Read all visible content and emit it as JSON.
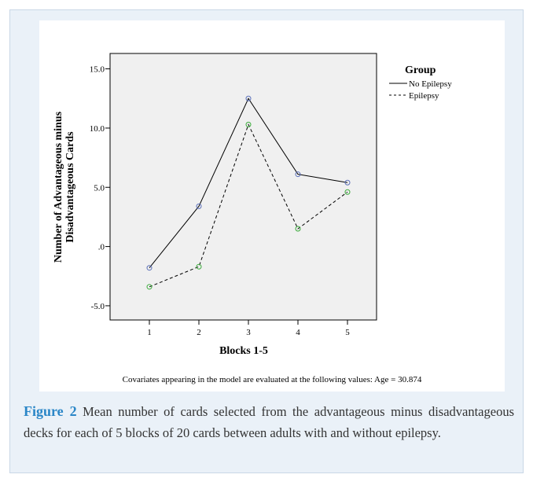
{
  "chart_data": {
    "type": "line",
    "categories": [
      "1",
      "2",
      "3",
      "4",
      "5"
    ],
    "xlabel": "Blocks 1-5",
    "ylabel": "Number of Advantageous minus\nDisadvantageous Cards",
    "ylim": [
      -6.2,
      16.3
    ],
    "yticks": [
      15.0,
      10.0,
      5.0,
      0.0,
      -5.0
    ],
    "ytick_labels": [
      "15.0",
      "10.0",
      "5.0",
      ".0",
      "-5.0"
    ],
    "grid": false,
    "legend": {
      "title": "Group",
      "placement": "top-right-outside",
      "entries": [
        "No Epilepsy",
        "Epilepsy"
      ]
    },
    "series": [
      {
        "name": "No Epilepsy",
        "values": [
          -1.8,
          3.4,
          12.5,
          6.1,
          5.4
        ],
        "line_style": "solid",
        "marker_color": "#5a6fb8"
      },
      {
        "name": "Epilepsy",
        "values": [
          -3.4,
          -1.7,
          10.3,
          1.5,
          4.6
        ],
        "line_style": "dashed",
        "marker_color": "#3aaa3a"
      }
    ],
    "footnote": "Covariates appearing in the model are evaluated at the following values: Age = 30.874"
  },
  "caption": {
    "label": "Figure 2",
    "text": "Mean number of cards selected from the advantageous minus disadvantageous decks for each of 5 blocks of 20 cards between adults with and without epilepsy."
  },
  "colors": {
    "plot_background": "#f0f0f0",
    "panel_background": "#eaf1f8",
    "caption_label": "#2a86c7"
  }
}
